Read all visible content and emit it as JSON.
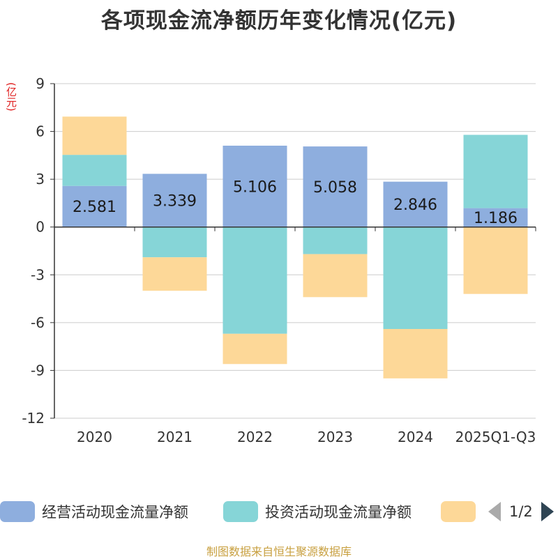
{
  "title": "各项现金流净额历年变化情况(亿元)",
  "unit": "(亿元)",
  "source": "制图数据来自恒生聚源数据库",
  "pager": {
    "text": "1/2"
  },
  "colors": {
    "operating": "#8eaede",
    "investing": "#86d5d7",
    "financing": "#fdd898"
  },
  "chart_data": {
    "type": "bar",
    "stacked": true,
    "title": "各项现金流净额历年变化情况(亿元)",
    "ylabel": "(亿元)",
    "ylim": [
      -12,
      9
    ],
    "yticks": [
      "9",
      "6",
      "3",
      "0",
      "-3",
      "-6",
      "-9",
      "-12"
    ],
    "ytick_values": [
      9,
      6,
      3,
      0,
      -3,
      -6,
      -9,
      -12
    ],
    "categories": [
      "2020",
      "2021",
      "2022",
      "2023",
      "2024",
      "2025Q1-Q3"
    ],
    "series": [
      {
        "name": "经营活动现金流量净额",
        "values": [
          2.581,
          3.339,
          5.106,
          5.058,
          2.846,
          1.186
        ],
        "labels": [
          "2.581",
          "3.339",
          "5.106",
          "5.058",
          "2.846",
          "1.186"
        ]
      },
      {
        "name": "投资活动现金流量净额",
        "values": [
          1.95,
          -1.9,
          -6.7,
          -1.7,
          -6.4,
          4.6
        ]
      },
      {
        "name": "",
        "values": [
          2.4,
          -2.1,
          -1.9,
          -2.7,
          -3.1,
          -4.2
        ]
      }
    ],
    "legend": [
      "经营活动现金流量净额",
      "投资活动现金流量净额",
      ""
    ],
    "legend_position": "bottom"
  }
}
